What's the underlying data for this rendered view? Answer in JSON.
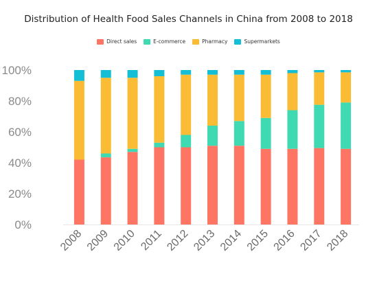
{
  "chart_data": {
    "type": "bar",
    "stacked": true,
    "percent": true,
    "title": "Distribution of Health Food Sales Channels in China from 2008 to 2018",
    "xlabel": "",
    "ylabel": "",
    "ylim": [
      0,
      100
    ],
    "y_ticks": [
      "0%",
      "20%",
      "40%",
      "60%",
      "80%",
      "100%"
    ],
    "categories": [
      "2008",
      "2009",
      "2010",
      "2011",
      "2012",
      "2013",
      "2014",
      "2015",
      "2016",
      "2017",
      "2018"
    ],
    "legend_position": "top-center",
    "grid": false,
    "series": [
      {
        "name": "Direct sales",
        "color": "#ff7563",
        "values": [
          42,
          43.5,
          47,
          50,
          50,
          51,
          51,
          49,
          49,
          49.5,
          49
        ]
      },
      {
        "name": "E-commerce",
        "color": "#3fd9b2",
        "values": [
          0,
          2.5,
          2,
          3,
          8,
          13,
          16,
          20,
          25,
          28,
          30
        ]
      },
      {
        "name": "Pharmacy",
        "color": "#fbbc35",
        "values": [
          51,
          49,
          46,
          43,
          39,
          33,
          30,
          28,
          24,
          21,
          19.5
        ]
      },
      {
        "name": "Supermarkets",
        "color": "#14bfd6",
        "values": [
          7,
          5,
          5,
          4,
          3,
          3,
          3,
          3,
          2,
          1.5,
          1.5
        ]
      }
    ]
  }
}
